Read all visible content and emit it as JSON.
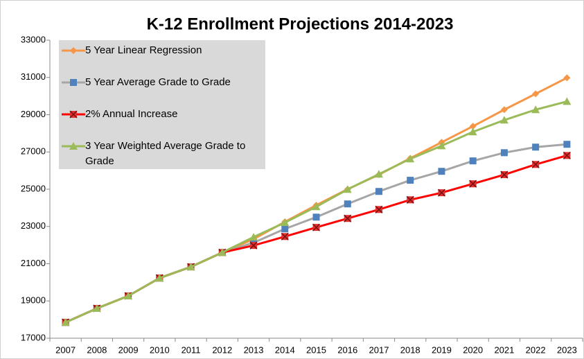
{
  "chart_data": {
    "type": "line",
    "title": "K-12 Enrollment Projections 2014-2023",
    "categories": [
      "2007",
      "2008",
      "2009",
      "2010",
      "2011",
      "2012",
      "2013",
      "2014",
      "2015",
      "2016",
      "2017",
      "2018",
      "2019",
      "2020",
      "2021",
      "2022",
      "2023"
    ],
    "ylim": [
      17000,
      33000
    ],
    "yticks": [
      17000,
      19000,
      21000,
      23000,
      25000,
      27000,
      29000,
      31000,
      33000
    ],
    "grid": false,
    "legend": "top-left",
    "series": [
      {
        "name": "5 Year Linear Regression",
        "color": "#f79646",
        "marker": "diamond",
        "marker_color": "#f79646",
        "values": [
          17850,
          18600,
          19270,
          20230,
          20830,
          21600,
          22320,
          23250,
          24140,
          25000,
          25780,
          26660,
          27520,
          28380,
          29270,
          30120,
          30980
        ]
      },
      {
        "name": "5 Year Average Grade to Grade",
        "color": "#a6a6a6",
        "marker": "square",
        "marker_color": "#4f81bd",
        "values": [
          17850,
          18600,
          19270,
          20230,
          20830,
          21600,
          22130,
          22870,
          23500,
          24210,
          24880,
          25480,
          25960,
          26520,
          26960,
          27260,
          27410
        ]
      },
      {
        "name": "2% Annual Increase",
        "color": "#ff0000",
        "marker": "xsquare",
        "marker_color": "#e03030",
        "values": [
          17850,
          18600,
          19270,
          20230,
          20830,
          21600,
          21980,
          22460,
          22950,
          23430,
          23910,
          24430,
          24810,
          25290,
          25780,
          26330,
          26810
        ]
      },
      {
        "name": "3 Year Weighted Average Grade to Grade",
        "color": "#9bbb59",
        "marker": "triangle",
        "marker_color": "#9bbb59",
        "values": [
          17850,
          18600,
          19270,
          20230,
          20830,
          21600,
          22430,
          23210,
          24060,
          24990,
          25810,
          26630,
          27330,
          28080,
          28710,
          29270,
          29710
        ]
      }
    ]
  }
}
